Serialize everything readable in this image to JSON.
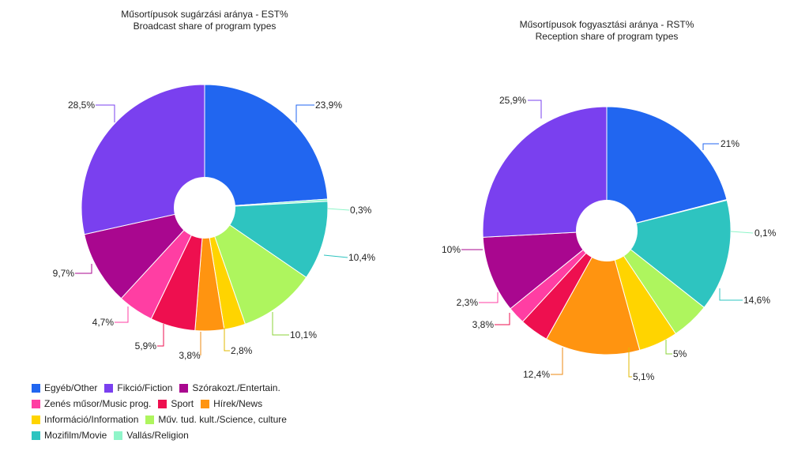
{
  "chart_data": [
    {
      "type": "pie",
      "title": "Műsortípusok sugárzási aránya - EST%",
      "subtitle": "Broadcast share of program types",
      "categories": [
        "Egyéb/Other",
        "Vallás/Religion",
        "Mozifilm/Movie",
        "Műv. tud. kult./Science, culture",
        "Információ/Information",
        "Hírek/News",
        "Sport",
        "Zenés műsor/Music prog.",
        "Szórakozt./Entertain.",
        "Fikció/Fiction"
      ],
      "values": [
        23.9,
        0.3,
        10.4,
        10.1,
        2.8,
        3.8,
        5.9,
        4.7,
        9.7,
        28.5
      ],
      "labels": [
        "23,9%",
        "0,3%",
        "10,4%",
        "10,1%",
        "2,8%",
        "3,8%",
        "5,9%",
        "4,7%",
        "9,7%",
        "28,5%"
      ]
    },
    {
      "type": "pie",
      "title": "Műsortípusok fogyasztási aránya - RST%",
      "subtitle": "Reception share of program types",
      "categories": [
        "Egyéb/Other",
        "Vallás/Religion",
        "Mozifilm/Movie",
        "Műv. tud. kult./Science, culture",
        "Információ/Information",
        "Hírek/News",
        "Sport",
        "Zenés műsor/Music prog.",
        "Szórakozt./Entertain.",
        "Fikció/Fiction"
      ],
      "values": [
        21,
        0.1,
        14.6,
        5,
        5.1,
        12.4,
        3.8,
        2.3,
        10,
        25.9
      ],
      "labels": [
        "21%",
        "0,1%",
        "14,6%",
        "5%",
        "5,1%",
        "12,4%",
        "3,8%",
        "2,3%",
        "10%",
        "25,9%"
      ]
    }
  ],
  "colors": {
    "Egyéb/Other": "#2166f0",
    "Vallás/Religion": "#8ff5c9",
    "Mozifilm/Movie": "#2ec4c0",
    "Műv. tud. kult./Science, culture": "#aef55e",
    "Információ/Information": "#ffd400",
    "Hírek/News": "#ff9410",
    "Sport": "#ee0f4f",
    "Zenés műsor/Music prog.": "#ff3ea3",
    "Szórakozt./Entertain.": "#a9078f",
    "Fikció/Fiction": "#7a40ef"
  },
  "legend": {
    "position": "bottom-left",
    "rows": [
      [
        "Egyéb/Other",
        "Fikció/Fiction",
        "Szórakozt./Entertain."
      ],
      [
        "Zenés műsor/Music prog.",
        "Sport",
        "Hírek/News"
      ],
      [
        "Információ/Information",
        "Műv. tud. kult./Science, culture"
      ],
      [
        "Mozifilm/Movie",
        "Vallás/Religion"
      ]
    ]
  }
}
